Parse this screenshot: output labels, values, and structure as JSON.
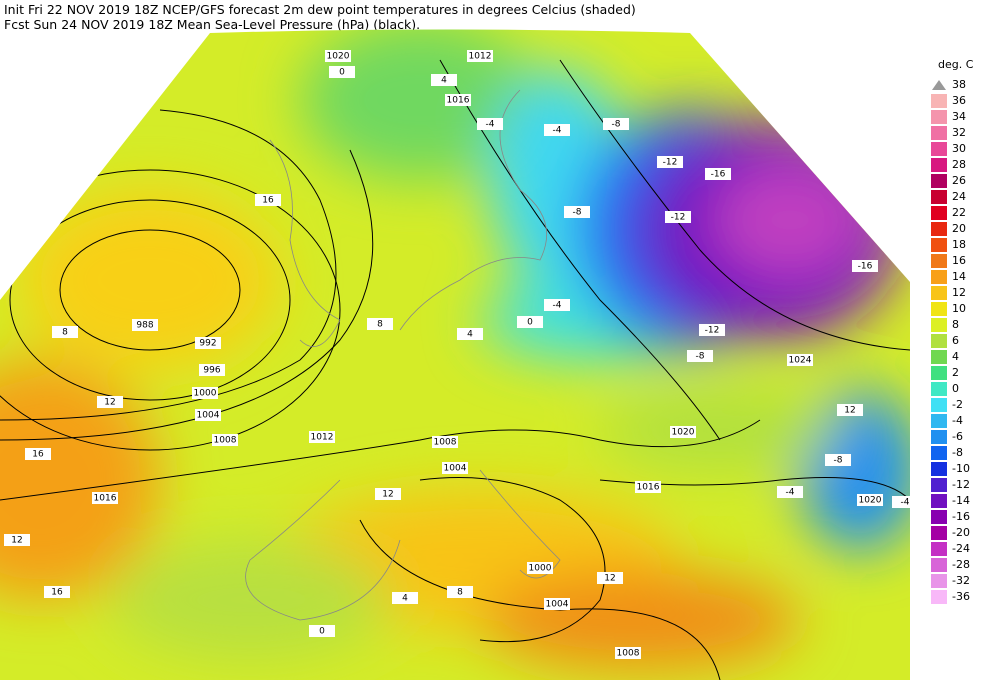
{
  "header": {
    "line1": "Init  Fri 22 NOV 2019 18Z   NCEP/GFS forecast 2m dew point temperatures in degrees Celcius (shaded)",
    "line2": "Fcst Sun 24 NOV 2019 18Z   Mean Sea-Level Pressure (hPa) (black)."
  },
  "legend": {
    "title": "deg. C",
    "top": 38,
    "levels": [
      36,
      34,
      32,
      30,
      28,
      26,
      24,
      22,
      20,
      18,
      16,
      14,
      12,
      10,
      8,
      6,
      4,
      2,
      0,
      -2,
      -4,
      -6,
      -8,
      -10,
      -12,
      -14,
      -16,
      -20,
      -24,
      -28,
      -32,
      -36
    ],
    "colors": [
      "#f8b4b4",
      "#f494ac",
      "#f070a4",
      "#e84898",
      "#d81880",
      "#b00060",
      "#c80030",
      "#e00020",
      "#e82810",
      "#f05010",
      "#f07818",
      "#f8a018",
      "#f8c418",
      "#f0e414",
      "#dcf024",
      "#b0e040",
      "#70d850",
      "#40e080",
      "#40e8c4",
      "#40e0f4",
      "#30b8f0",
      "#2090f0",
      "#1064f0",
      "#1430e0",
      "#5020d0",
      "#7010c0",
      "#8800b0",
      "#a400a4",
      "#c430c4",
      "#d864d8",
      "#e894e8",
      "#f8b8f8"
    ]
  },
  "map": {
    "isobar_labels": [
      "1020",
      "1012",
      "1016",
      "988",
      "992",
      "996",
      "1000",
      "1004",
      "1008",
      "1012",
      "1008",
      "1004",
      "1016",
      "1016",
      "1020",
      "1024",
      "1000",
      "1004",
      "1008",
      "1020"
    ],
    "dewpoint_labels": [
      "0",
      "4",
      "-4",
      "-4",
      "-8",
      "-12",
      "-16",
      "-12",
      "-16",
      "-8",
      "-12",
      "-8",
      "-4",
      "0",
      "4",
      "8",
      "8",
      "12",
      "16",
      "12",
      "16",
      "12",
      "8",
      "-4",
      "-8",
      "-4",
      "12",
      "0",
      "4",
      "16",
      "12"
    ]
  }
}
